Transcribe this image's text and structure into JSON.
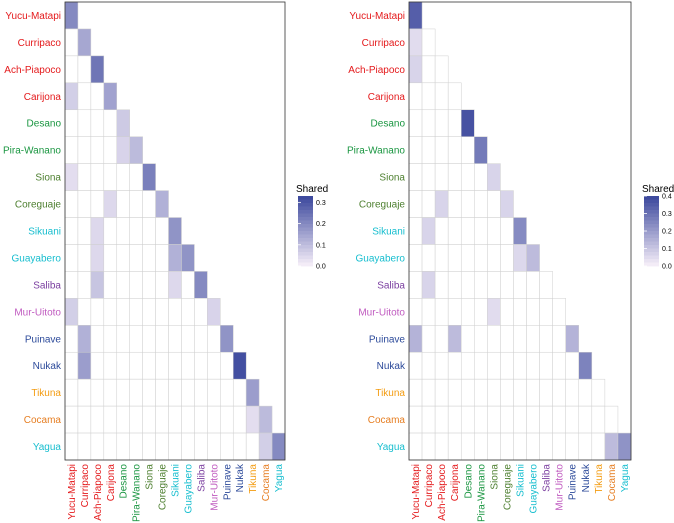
{
  "chart_data": [
    {
      "type": "heatmap",
      "name": "left",
      "labels": [
        "Yucu-Matapi",
        "Curripaco",
        "Ach-Piapoco",
        "Carijona",
        "Desano",
        "Pira-Wanano",
        "Siona",
        "Coreguaje",
        "Sikuani",
        "Guayabero",
        "Saliba",
        "Mur-Uitoto",
        "Puinave",
        "Nukak",
        "Tikuna",
        "Cocama",
        "Yagua"
      ],
      "label_colors": [
        "#E41A1C",
        "#E41A1C",
        "#E41A1C",
        "#E41A1C",
        "#1A9641",
        "#1A9641",
        "#4D7F2F",
        "#4D7F2F",
        "#17BECF",
        "#17BECF",
        "#7B3FA0",
        "#C05BC0",
        "#2C4A9A",
        "#2C4A9A",
        "#F39C12",
        "#E67E22",
        "#17BECF"
      ],
      "values": [
        [
          0.2
        ],
        [
          0.0,
          0.14
        ],
        [
          0.0,
          0.0,
          0.24
        ],
        [
          0.06,
          0.0,
          0.0,
          0.15
        ],
        [
          0.0,
          0.0,
          0.0,
          0.0,
          0.07
        ],
        [
          0.0,
          0.0,
          0.0,
          0.0,
          0.05,
          0.1
        ],
        [
          0.03,
          0.0,
          0.0,
          0.0,
          0.0,
          0.0,
          0.22
        ],
        [
          0.0,
          0.0,
          0.0,
          0.04,
          0.0,
          0.0,
          0.0,
          0.12
        ],
        [
          0.0,
          0.0,
          0.04,
          0.0,
          0.0,
          0.0,
          0.0,
          0.0,
          0.18
        ],
        [
          0.0,
          0.0,
          0.04,
          0.0,
          0.0,
          0.0,
          0.0,
          0.0,
          0.12,
          0.18
        ],
        [
          0.0,
          0.0,
          0.08,
          0.0,
          0.0,
          0.0,
          0.0,
          0.0,
          0.04,
          0.0,
          0.2
        ],
        [
          0.06,
          0.0,
          0.0,
          0.0,
          0.0,
          0.0,
          0.0,
          0.0,
          0.0,
          0.0,
          0.0,
          0.05
        ],
        [
          0.0,
          0.12,
          0.0,
          0.0,
          0.0,
          0.0,
          0.0,
          0.0,
          0.0,
          0.0,
          0.0,
          0.0,
          0.18
        ],
        [
          0.0,
          0.16,
          0.0,
          0.0,
          0.0,
          0.0,
          0.0,
          0.0,
          0.0,
          0.0,
          0.0,
          0.0,
          0.0,
          0.32
        ],
        [
          0.0,
          0.0,
          0.0,
          0.0,
          0.0,
          0.0,
          0.0,
          0.0,
          0.0,
          0.0,
          0.0,
          0.0,
          0.0,
          0.0,
          0.16
        ],
        [
          0.0,
          0.0,
          0.0,
          0.0,
          0.0,
          0.0,
          0.0,
          0.0,
          0.0,
          0.0,
          0.0,
          0.0,
          0.0,
          0.0,
          0.03,
          0.1
        ],
        [
          0.0,
          0.0,
          0.0,
          0.0,
          0.0,
          0.0,
          0.0,
          0.0,
          0.0,
          0.0,
          0.0,
          0.0,
          0.0,
          0.0,
          0.0,
          0.06,
          0.2
        ]
      ],
      "legend": {
        "title": "Shared",
        "ticks": [
          "0.3",
          "0.2",
          "0.1",
          "0.0"
        ],
        "tick_values": [
          0.3,
          0.2,
          0.1,
          0.0
        ],
        "range": [
          0.0,
          0.33
        ]
      }
    },
    {
      "type": "heatmap",
      "name": "right",
      "labels": [
        "Yucu-Matapi",
        "Curripaco",
        "Ach-Piapoco",
        "Carijona",
        "Desano",
        "Pira-Wanano",
        "Siona",
        "Coreguaje",
        "Sikuani",
        "Guayabero",
        "Saliba",
        "Mur-Uitoto",
        "Puinave",
        "Nukak",
        "Tikuna",
        "Cocama",
        "Yagua"
      ],
      "label_colors": [
        "#E41A1C",
        "#E41A1C",
        "#E41A1C",
        "#E41A1C",
        "#1A9641",
        "#1A9641",
        "#4D7F2F",
        "#4D7F2F",
        "#17BECF",
        "#17BECF",
        "#7B3FA0",
        "#C05BC0",
        "#2C4A9A",
        "#2C4A9A",
        "#F39C12",
        "#E67E22",
        "#17BECF"
      ],
      "values": [
        [
          0.35
        ],
        [
          0.04,
          0.0
        ],
        [
          0.06,
          0.0,
          0.0
        ],
        [
          0.0,
          0.0,
          0.0,
          0.0
        ],
        [
          0.0,
          0.0,
          0.0,
          0.0,
          0.38
        ],
        [
          0.0,
          0.0,
          0.0,
          0.0,
          0.0,
          0.28
        ],
        [
          0.0,
          0.0,
          0.0,
          0.0,
          0.0,
          0.0,
          0.06
        ],
        [
          0.0,
          0.0,
          0.06,
          0.0,
          0.0,
          0.0,
          0.0,
          0.06
        ],
        [
          0.0,
          0.06,
          0.0,
          0.0,
          0.0,
          0.0,
          0.0,
          0.0,
          0.24
        ],
        [
          0.0,
          0.0,
          0.0,
          0.0,
          0.0,
          0.0,
          0.0,
          0.0,
          0.05,
          0.12
        ],
        [
          0.0,
          0.06,
          0.0,
          0.0,
          0.0,
          0.0,
          0.0,
          0.0,
          0.0,
          0.0,
          0.0
        ],
        [
          0.0,
          0.0,
          0.0,
          0.0,
          0.0,
          0.0,
          0.04,
          0.0,
          0.0,
          0.0,
          0.0,
          0.0
        ],
        [
          0.14,
          0.0,
          0.0,
          0.12,
          0.0,
          0.0,
          0.0,
          0.0,
          0.0,
          0.0,
          0.0,
          0.0,
          0.14
        ],
        [
          0.0,
          0.0,
          0.0,
          0.0,
          0.0,
          0.0,
          0.0,
          0.0,
          0.0,
          0.0,
          0.0,
          0.0,
          0.0,
          0.26
        ],
        [
          0.0,
          0.0,
          0.0,
          0.0,
          0.0,
          0.0,
          0.0,
          0.0,
          0.0,
          0.0,
          0.0,
          0.0,
          0.0,
          0.0,
          0.0
        ],
        [
          0.0,
          0.0,
          0.0,
          0.0,
          0.0,
          0.0,
          0.0,
          0.0,
          0.0,
          0.0,
          0.0,
          0.0,
          0.0,
          0.0,
          0.0,
          0.0
        ],
        [
          0.0,
          0.0,
          0.0,
          0.0,
          0.0,
          0.0,
          0.0,
          0.0,
          0.0,
          0.0,
          0.0,
          0.0,
          0.0,
          0.0,
          0.0,
          0.12,
          0.22
        ]
      ],
      "legend": {
        "title": "Shared",
        "ticks": [
          "0.4",
          "0.3",
          "0.2",
          "0.1",
          "0.0"
        ],
        "tick_values": [
          0.4,
          0.3,
          0.2,
          0.1,
          0.0
        ],
        "range": [
          0.0,
          0.4
        ]
      }
    }
  ]
}
